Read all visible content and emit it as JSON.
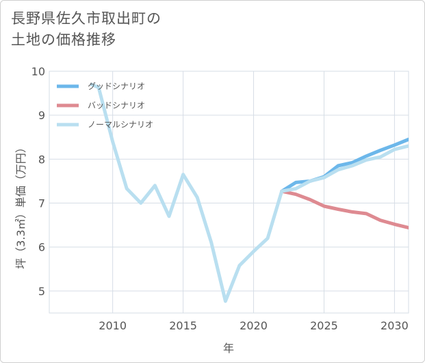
{
  "title": "長野県佐久市取出町の\n土地の価格推移",
  "chart_data": {
    "type": "line",
    "title": "長野県佐久市取出町の土地の価格推移",
    "xlabel": "年",
    "ylabel": "坪（3.3㎡）単価（万円）",
    "xlim": [
      2005.5,
      2031
    ],
    "ylim": [
      4.5,
      10
    ],
    "xticks": [
      2010,
      2015,
      2020,
      2025,
      2030
    ],
    "yticks": [
      5,
      6,
      7,
      8,
      9,
      10
    ],
    "grid": true,
    "legend_position": "top-left",
    "series": [
      {
        "name": "グッドシナリオ",
        "color": "#6cb7ea",
        "x": [
          2022,
          2023,
          2024,
          2025,
          2026,
          2027,
          2028,
          2029,
          2030,
          2031
        ],
        "values": [
          7.27,
          7.47,
          7.5,
          7.6,
          7.85,
          7.92,
          8.07,
          8.2,
          8.32,
          8.45
        ]
      },
      {
        "name": "バッドシナリオ",
        "color": "#de8a91",
        "x": [
          2022,
          2023,
          2024,
          2025,
          2026,
          2027,
          2028,
          2029,
          2030,
          2031
        ],
        "values": [
          7.27,
          7.2,
          7.08,
          6.93,
          6.86,
          6.8,
          6.76,
          6.61,
          6.52,
          6.44
        ]
      },
      {
        "name": "ノーマルシナリオ",
        "color": "#b9dff0",
        "x": [
          2008.5,
          2009,
          2010,
          2011,
          2012,
          2013,
          2014,
          2015,
          2016,
          2017,
          2018,
          2019,
          2020,
          2021,
          2022,
          2023,
          2024,
          2025,
          2026,
          2027,
          2028,
          2029,
          2030,
          2031
        ],
        "values": [
          9.7,
          9.63,
          8.4,
          7.33,
          7.0,
          7.4,
          6.7,
          7.65,
          7.13,
          6.1,
          4.77,
          5.58,
          5.9,
          6.2,
          7.27,
          7.33,
          7.5,
          7.58,
          7.76,
          7.85,
          7.98,
          8.05,
          8.22,
          8.3
        ]
      }
    ]
  }
}
